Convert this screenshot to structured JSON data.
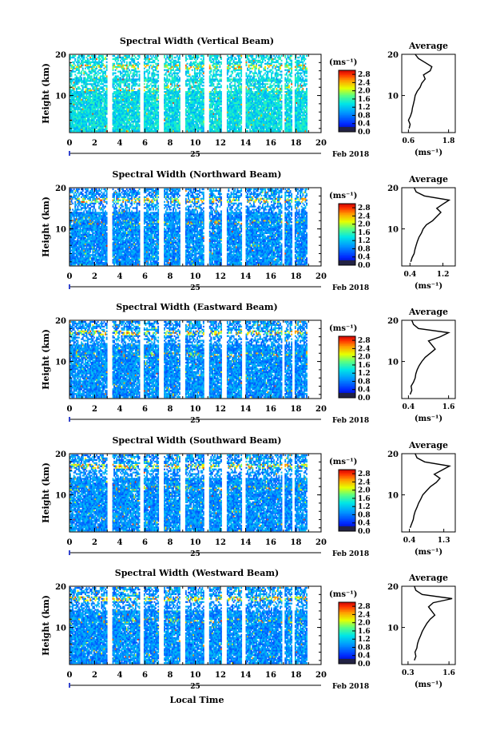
{
  "figure": {
    "date_label": "Feb 2018",
    "day_label": "25",
    "xlabel_bottom": "Local Time"
  },
  "chart_data": [
    {
      "type": "heatmap",
      "title": "Spectral Width (Vertical Beam)",
      "ylabel": "Height (km)",
      "xlabel": "Local Time",
      "x_ticks": [
        "0",
        "2",
        "4",
        "6",
        "8",
        "10",
        "12",
        "14",
        "16",
        "18",
        "20"
      ],
      "y_ticks": [
        "10",
        "20"
      ],
      "xlim": [
        0,
        20
      ],
      "ylim": [
        1,
        20
      ],
      "colorbar": {
        "unit": "(ms⁻¹)",
        "ticks": [
          "0.0",
          "0.4",
          "0.8",
          "1.2",
          "1.6",
          "2.0",
          "2.4",
          "2.8"
        ],
        "range": [
          0,
          3.0
        ]
      },
      "data_gaps_hours": [
        [
          3.0,
          3.4
        ],
        [
          5.5,
          5.8
        ],
        [
          7.0,
          7.4
        ],
        [
          8.7,
          9.1
        ],
        [
          10.6,
          11.0
        ],
        [
          12.0,
          12.4
        ],
        [
          13.6,
          13.9
        ],
        [
          16.8,
          17.0
        ],
        [
          17.6,
          17.8
        ],
        [
          18.9,
          20.0
        ]
      ],
      "average_profile": {
        "title": "Average",
        "xlabel": "(ms⁻¹)",
        "x_ticks": [
          "0.6",
          "1.8"
        ],
        "xlim": [
          0.4,
          2.0
        ],
        "heights_km": [
          2,
          3,
          4,
          5,
          6,
          7,
          8,
          9,
          10,
          11,
          12,
          13,
          14,
          15,
          16,
          17,
          18,
          19,
          20
        ],
        "values": [
          0.62,
          0.65,
          0.6,
          0.66,
          0.7,
          0.72,
          0.75,
          0.78,
          0.8,
          0.86,
          0.95,
          1.0,
          1.1,
          1.05,
          1.25,
          1.3,
          1.1,
          0.9,
          0.8
        ]
      }
    },
    {
      "type": "heatmap",
      "title": "Spectral Width (Northward Beam)",
      "ylabel": "Height (km)",
      "xlabel": "Local Time",
      "x_ticks": [
        "0",
        "2",
        "4",
        "6",
        "8",
        "10",
        "12",
        "14",
        "16",
        "18",
        "20"
      ],
      "y_ticks": [
        "10",
        "20"
      ],
      "xlim": [
        0,
        20
      ],
      "ylim": [
        1,
        20
      ],
      "colorbar": {
        "unit": "(ms⁻¹)",
        "ticks": [
          "0.0",
          "0.4",
          "0.8",
          "1.2",
          "1.6",
          "2.0",
          "2.4",
          "2.8"
        ],
        "range": [
          0,
          3.0
        ]
      },
      "data_gaps_hours": [
        [
          3.0,
          3.4
        ],
        [
          5.5,
          5.8
        ],
        [
          7.0,
          7.4
        ],
        [
          8.7,
          9.1
        ],
        [
          10.6,
          11.0
        ],
        [
          12.0,
          12.4
        ],
        [
          13.6,
          13.9
        ],
        [
          16.8,
          17.0
        ],
        [
          17.6,
          17.8
        ],
        [
          18.9,
          20.0
        ]
      ],
      "average_profile": {
        "title": "Average",
        "xlabel": "(ms⁻¹)",
        "x_ticks": [
          "0.4",
          "1.2"
        ],
        "xlim": [
          0.2,
          1.5
        ],
        "heights_km": [
          2,
          3,
          4,
          5,
          6,
          7,
          8,
          9,
          10,
          11,
          12,
          13,
          14,
          15,
          16,
          17,
          18,
          19,
          20
        ],
        "values": [
          0.42,
          0.45,
          0.5,
          0.52,
          0.55,
          0.58,
          0.62,
          0.68,
          0.72,
          0.8,
          0.95,
          1.05,
          1.15,
          1.05,
          1.2,
          1.35,
          0.75,
          0.55,
          0.5
        ]
      }
    },
    {
      "type": "heatmap",
      "title": "Spectral Width (Eastward Beam)",
      "ylabel": "Height (km)",
      "xlabel": "Local Time",
      "x_ticks": [
        "0",
        "2",
        "4",
        "6",
        "8",
        "10",
        "12",
        "14",
        "16",
        "18",
        "20"
      ],
      "y_ticks": [
        "10",
        "20"
      ],
      "xlim": [
        0,
        20
      ],
      "ylim": [
        1,
        20
      ],
      "colorbar": {
        "unit": "(ms⁻¹)",
        "ticks": [
          "0.0",
          "0.4",
          "0.8",
          "1.2",
          "1.6",
          "2.0",
          "2.4",
          "2.8"
        ],
        "range": [
          0,
          3.0
        ]
      },
      "data_gaps_hours": [
        [
          3.0,
          3.4
        ],
        [
          5.5,
          5.8
        ],
        [
          7.0,
          7.4
        ],
        [
          8.7,
          9.1
        ],
        [
          10.6,
          11.0
        ],
        [
          12.0,
          12.4
        ],
        [
          13.6,
          13.9
        ],
        [
          16.8,
          17.0
        ],
        [
          17.6,
          17.8
        ],
        [
          18.9,
          20.0
        ]
      ],
      "average_profile": {
        "title": "Average",
        "xlabel": "(ms⁻¹)",
        "x_ticks": [
          "0.4",
          "1.6"
        ],
        "xlim": [
          0.2,
          1.8
        ],
        "heights_km": [
          2,
          3,
          4,
          5,
          6,
          7,
          8,
          9,
          10,
          11,
          12,
          13,
          14,
          15,
          16,
          17,
          18,
          19,
          20
        ],
        "values": [
          0.45,
          0.5,
          0.48,
          0.55,
          0.6,
          0.62,
          0.66,
          0.72,
          0.8,
          0.9,
          1.05,
          1.2,
          1.1,
          1.0,
          1.35,
          1.6,
          0.7,
          0.55,
          0.5
        ]
      }
    },
    {
      "type": "heatmap",
      "title": "Spectral Width (Southward Beam)",
      "ylabel": "Height (km)",
      "xlabel": "Local Time",
      "x_ticks": [
        "0",
        "2",
        "4",
        "6",
        "8",
        "10",
        "12",
        "14",
        "16",
        "18",
        "20"
      ],
      "y_ticks": [
        "10",
        "20"
      ],
      "xlim": [
        0,
        20
      ],
      "ylim": [
        1,
        20
      ],
      "colorbar": {
        "unit": "(ms⁻¹)",
        "ticks": [
          "0.0",
          "0.4",
          "0.8",
          "1.2",
          "1.6",
          "2.0",
          "2.4",
          "2.8"
        ],
        "range": [
          0,
          3.0
        ]
      },
      "data_gaps_hours": [
        [
          3.0,
          3.4
        ],
        [
          5.5,
          5.8
        ],
        [
          7.0,
          7.4
        ],
        [
          8.7,
          9.1
        ],
        [
          10.6,
          11.0
        ],
        [
          12.0,
          12.4
        ],
        [
          13.6,
          13.9
        ],
        [
          16.8,
          17.0
        ],
        [
          17.6,
          17.8
        ],
        [
          18.9,
          20.0
        ]
      ],
      "average_profile": {
        "title": "Average",
        "xlabel": "(ms⁻¹)",
        "x_ticks": [
          "0.4",
          "1.3"
        ],
        "xlim": [
          0.2,
          1.6
        ],
        "heights_km": [
          2,
          3,
          4,
          5,
          6,
          7,
          8,
          9,
          10,
          11,
          12,
          13,
          14,
          15,
          16,
          17,
          18,
          19,
          20
        ],
        "values": [
          0.42,
          0.46,
          0.5,
          0.52,
          0.55,
          0.6,
          0.64,
          0.7,
          0.75,
          0.85,
          0.95,
          1.1,
          1.2,
          1.05,
          1.25,
          1.45,
          0.8,
          0.6,
          0.55
        ]
      }
    },
    {
      "type": "heatmap",
      "title": "Spectral Width (Westward Beam)",
      "ylabel": "Height (km)",
      "xlabel": "Local Time",
      "x_ticks": [
        "0",
        "2",
        "4",
        "6",
        "8",
        "10",
        "12",
        "14",
        "16",
        "18",
        "20"
      ],
      "y_ticks": [
        "10",
        "20"
      ],
      "xlim": [
        0,
        20
      ],
      "ylim": [
        1,
        20
      ],
      "colorbar": {
        "unit": "(ms⁻¹)",
        "ticks": [
          "0.0",
          "0.4",
          "0.8",
          "1.2",
          "1.6",
          "2.0",
          "2.4",
          "2.8"
        ],
        "range": [
          0,
          3.0
        ]
      },
      "data_gaps_hours": [
        [
          3.0,
          3.4
        ],
        [
          5.5,
          5.8
        ],
        [
          7.0,
          7.4
        ],
        [
          8.7,
          9.1
        ],
        [
          10.6,
          11.0
        ],
        [
          12.0,
          12.4
        ],
        [
          13.6,
          13.9
        ],
        [
          16.8,
          17.0
        ],
        [
          17.6,
          17.8
        ],
        [
          18.9,
          20.0
        ]
      ],
      "average_profile": {
        "title": "Average",
        "xlabel": "(ms⁻¹)",
        "x_ticks": [
          "0.3",
          "1.6"
        ],
        "xlim": [
          0.1,
          1.8
        ],
        "heights_km": [
          2,
          3,
          4,
          5,
          6,
          7,
          8,
          9,
          10,
          11,
          12,
          13,
          14,
          15,
          16,
          17,
          18,
          19,
          20
        ],
        "values": [
          0.5,
          0.55,
          0.52,
          0.58,
          0.6,
          0.64,
          0.7,
          0.75,
          0.82,
          0.9,
          1.0,
          1.15,
          1.05,
          0.95,
          1.1,
          1.7,
          0.75,
          0.55,
          0.5
        ]
      }
    }
  ]
}
